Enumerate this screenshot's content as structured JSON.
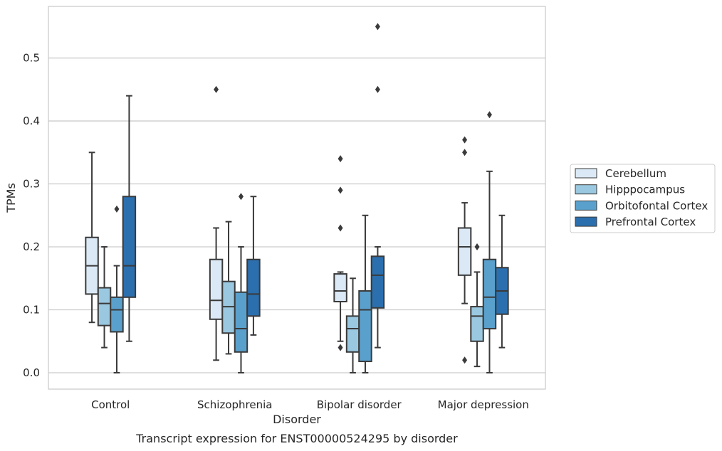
{
  "caption": "Transcript expression for ENST00000524295 by disorder",
  "chart_data": {
    "type": "box",
    "xlabel": "Disorder",
    "ylabel": "TPMs",
    "ylim": [
      -0.026,
      0.582
    ],
    "yticks": [
      "0.0",
      "0.1",
      "0.2",
      "0.3",
      "0.4",
      "0.5"
    ],
    "grid": "horizontal",
    "legend_position": "right",
    "categories": [
      "Control",
      "Schizophrenia",
      "Bipolar disorder",
      "Major depression"
    ],
    "series": [
      {
        "name": "Cerebellum",
        "color": "#dbe9f6",
        "boxes": [
          {
            "q1": 0.125,
            "median": 0.17,
            "q3": 0.215,
            "whisker_low": 0.08,
            "whisker_high": 0.35,
            "outliers": []
          },
          {
            "q1": 0.085,
            "median": 0.115,
            "q3": 0.18,
            "whisker_low": 0.02,
            "whisker_high": 0.23,
            "outliers": [
              0.45
            ]
          },
          {
            "q1": 0.113,
            "median": 0.13,
            "q3": 0.157,
            "whisker_low": 0.05,
            "whisker_high": 0.16,
            "outliers": [
              0.04,
              0.23,
              0.29,
              0.34
            ]
          },
          {
            "q1": 0.155,
            "median": 0.2,
            "q3": 0.23,
            "whisker_low": 0.11,
            "whisker_high": 0.27,
            "outliers": [
              0.02,
              0.35,
              0.37
            ]
          }
        ]
      },
      {
        "name": "Hipppocampus",
        "color": "#9ac8e0",
        "boxes": [
          {
            "q1": 0.075,
            "median": 0.11,
            "q3": 0.135,
            "whisker_low": 0.04,
            "whisker_high": 0.2,
            "outliers": []
          },
          {
            "q1": 0.063,
            "median": 0.105,
            "q3": 0.145,
            "whisker_low": 0.03,
            "whisker_high": 0.24,
            "outliers": []
          },
          {
            "q1": 0.033,
            "median": 0.07,
            "q3": 0.09,
            "whisker_low": 0.0,
            "whisker_high": 0.15,
            "outliers": []
          },
          {
            "q1": 0.05,
            "median": 0.09,
            "q3": 0.105,
            "whisker_low": 0.01,
            "whisker_high": 0.16,
            "outliers": [
              0.2
            ]
          }
        ]
      },
      {
        "name": "Orbitofontal Cortex",
        "color": "#5aa0cc",
        "boxes": [
          {
            "q1": 0.065,
            "median": 0.1,
            "q3": 0.12,
            "whisker_low": 0.0,
            "whisker_high": 0.17,
            "outliers": [
              0.26
            ]
          },
          {
            "q1": 0.033,
            "median": 0.07,
            "q3": 0.128,
            "whisker_low": 0.0,
            "whisker_high": 0.2,
            "outliers": [
              0.28
            ]
          },
          {
            "q1": 0.018,
            "median": 0.1,
            "q3": 0.13,
            "whisker_low": 0.0,
            "whisker_high": 0.25,
            "outliers": []
          },
          {
            "q1": 0.07,
            "median": 0.12,
            "q3": 0.18,
            "whisker_low": 0.0,
            "whisker_high": 0.32,
            "outliers": [
              0.41
            ]
          }
        ]
      },
      {
        "name": "Prefrontal Cortex",
        "color": "#2b6fae",
        "boxes": [
          {
            "q1": 0.12,
            "median": 0.17,
            "q3": 0.28,
            "whisker_low": 0.05,
            "whisker_high": 0.44,
            "outliers": []
          },
          {
            "q1": 0.09,
            "median": 0.125,
            "q3": 0.18,
            "whisker_low": 0.06,
            "whisker_high": 0.28,
            "outliers": []
          },
          {
            "q1": 0.103,
            "median": 0.155,
            "q3": 0.185,
            "whisker_low": 0.04,
            "whisker_high": 0.2,
            "outliers": [
              0.45,
              0.55
            ]
          },
          {
            "q1": 0.093,
            "median": 0.13,
            "q3": 0.167,
            "whisker_low": 0.04,
            "whisker_high": 0.25,
            "outliers": []
          }
        ]
      }
    ]
  }
}
